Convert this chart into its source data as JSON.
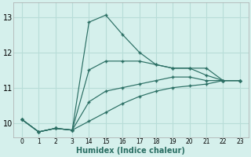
{
  "xlabel": "Humidex (Indice chaleur)",
  "ylabel": "",
  "bg_color": "#d5f0ec",
  "line_color": "#2a6e63",
  "grid_color": "#b8ddd8",
  "ylim": [
    9.6,
    13.4
  ],
  "yticks": [
    10,
    11,
    12,
    13
  ],
  "xtick_labels": [
    "0",
    "1",
    "2",
    "3",
    "14",
    "15",
    "16",
    "17",
    "18",
    "19",
    "20",
    "21",
    "22",
    "23"
  ],
  "lines": [
    {
      "y": [
        10.1,
        9.75,
        9.85,
        9.8,
        12.85,
        13.05,
        12.5,
        12.0,
        11.65,
        11.55,
        11.55,
        11.35,
        11.2,
        11.2
      ]
    },
    {
      "y": [
        10.1,
        9.75,
        9.85,
        9.8,
        11.5,
        11.75,
        11.75,
        11.75,
        11.65,
        11.55,
        11.55,
        11.55,
        11.2,
        11.2
      ]
    },
    {
      "y": [
        10.1,
        9.75,
        9.85,
        9.8,
        10.6,
        10.9,
        11.0,
        11.1,
        11.2,
        11.3,
        11.3,
        11.2,
        11.2,
        11.2
      ]
    },
    {
      "y": [
        10.1,
        9.75,
        9.85,
        9.8,
        10.05,
        10.3,
        10.55,
        10.75,
        10.9,
        11.0,
        11.05,
        11.1,
        11.2,
        11.2
      ]
    }
  ]
}
